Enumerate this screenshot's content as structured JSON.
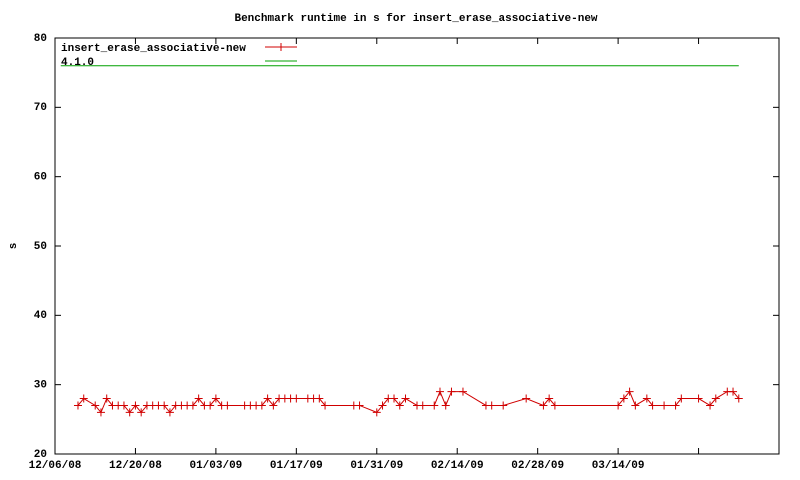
{
  "chart_data": {
    "type": "line",
    "title": "Benchmark runtime in s for insert_erase_associative-new",
    "y_label": "s",
    "legend": "top-left",
    "ylim": [
      20,
      80
    ],
    "yticks": [
      20,
      30,
      40,
      50,
      60,
      70,
      80
    ],
    "xlim": [
      "2008-12-06",
      "2009-04-11"
    ],
    "xticks": [
      {
        "value": "2008-12-06",
        "label": "12/06/08"
      },
      {
        "value": "2008-12-20",
        "label": "12/20/08"
      },
      {
        "value": "2009-01-03",
        "label": "01/03/09"
      },
      {
        "value": "2009-01-17",
        "label": "01/17/09"
      },
      {
        "value": "2009-01-31",
        "label": "01/31/09"
      },
      {
        "value": "2009-02-14",
        "label": "02/14/09"
      },
      {
        "value": "2009-02-28",
        "label": "02/28/09"
      },
      {
        "value": "2009-03-14",
        "label": "03/14/09"
      },
      {
        "value": "2009-03-28",
        "label": null
      },
      {
        "value": "2009-04-11",
        "label": null
      }
    ],
    "series": [
      {
        "name": "insert_erase_associative-new",
        "color": "#d00000",
        "marker": "+",
        "x": [
          "2008-12-10",
          "2008-12-11",
          "2008-12-13",
          "2008-12-14",
          "2008-12-15",
          "2008-12-16",
          "2008-12-17",
          "2008-12-18",
          "2008-12-19",
          "2008-12-20",
          "2008-12-21",
          "2008-12-22",
          "2008-12-23",
          "2008-12-24",
          "2008-12-25",
          "2008-12-26",
          "2008-12-27",
          "2008-12-28",
          "2008-12-29",
          "2008-12-30",
          "2008-12-31",
          "2009-01-01",
          "2009-01-02",
          "2009-01-03",
          "2009-01-04",
          "2009-01-05",
          "2009-01-08",
          "2009-01-09",
          "2009-01-10",
          "2009-01-11",
          "2009-01-12",
          "2009-01-13",
          "2009-01-14",
          "2009-01-15",
          "2009-01-16",
          "2009-01-17",
          "2009-01-19",
          "2009-01-20",
          "2009-01-21",
          "2009-01-22",
          "2009-01-27",
          "2009-01-28",
          "2009-01-31",
          "2009-02-01",
          "2009-02-02",
          "2009-02-03",
          "2009-02-04",
          "2009-02-05",
          "2009-02-07",
          "2009-02-08",
          "2009-02-10",
          "2009-02-11",
          "2009-02-12",
          "2009-02-13",
          "2009-02-15",
          "2009-02-19",
          "2009-02-20",
          "2009-02-22",
          "2009-02-26",
          "2009-03-01",
          "2009-03-02",
          "2009-03-03",
          "2009-03-14",
          "2009-03-15",
          "2009-03-16",
          "2009-03-17",
          "2009-03-19",
          "2009-03-20",
          "2009-03-22",
          "2009-03-24",
          "2009-03-25",
          "2009-03-28",
          "2009-03-30",
          "2009-03-31",
          "2009-04-02",
          "2009-04-03",
          "2009-04-04"
        ],
        "values": [
          27,
          28,
          27,
          26,
          28,
          27,
          27,
          27,
          26,
          27,
          26,
          27,
          27,
          27,
          27,
          26,
          27,
          27,
          27,
          27,
          28,
          27,
          27,
          28,
          27,
          27,
          27,
          27,
          27,
          27,
          28,
          27,
          28,
          28,
          28,
          28,
          28,
          28,
          28,
          27,
          27,
          27,
          26,
          27,
          28,
          28,
          27,
          28,
          27,
          27,
          27,
          29,
          27,
          29,
          29,
          27,
          27,
          27,
          28,
          27,
          28,
          27,
          27,
          28,
          29,
          27,
          28,
          27,
          27,
          27,
          28,
          28,
          27,
          28,
          29,
          29,
          28
        ]
      },
      {
        "name": "4.1.0",
        "color": "#00a000",
        "x": [
          "2008-12-07",
          "2009-04-04"
        ],
        "values": [
          76,
          76
        ]
      }
    ]
  }
}
